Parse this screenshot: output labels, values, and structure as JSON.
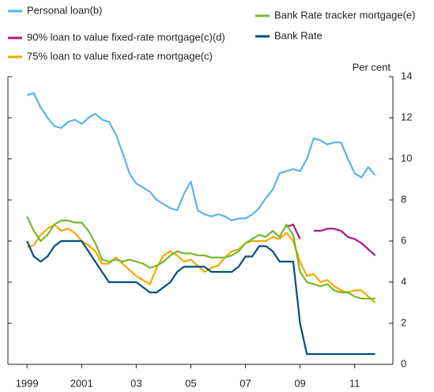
{
  "chart_data": {
    "type": "line",
    "ylabel": "Per cent",
    "x": [
      1999,
      1999.25,
      1999.5,
      1999.75,
      2000,
      2000.25,
      2000.5,
      2000.75,
      2001,
      2001.25,
      2001.5,
      2001.75,
      2002,
      2002.25,
      2002.5,
      2002.75,
      2003,
      2003.25,
      2003.5,
      2003.75,
      2004,
      2004.25,
      2004.5,
      2004.75,
      2005,
      2005.25,
      2005.5,
      2005.75,
      2006,
      2006.25,
      2006.5,
      2006.75,
      2007,
      2007.25,
      2007.5,
      2007.75,
      2008,
      2008.25,
      2008.5,
      2008.75,
      2009,
      2009.25,
      2009.5,
      2009.75,
      2010,
      2010.25,
      2010.5,
      2010.75,
      2011,
      2011.25,
      2011.5,
      2011.75
    ],
    "series": [
      {
        "name": "Personal loan(b)",
        "color": "#5ab4e5",
        "values": [
          13.1,
          13.2,
          12.5,
          12.0,
          11.6,
          11.5,
          11.8,
          11.9,
          11.7,
          12.0,
          12.2,
          11.9,
          11.8,
          11.2,
          10.3,
          9.3,
          8.8,
          8.6,
          8.4,
          8.0,
          7.8,
          7.6,
          7.5,
          8.3,
          8.9,
          7.5,
          7.3,
          7.2,
          7.3,
          7.2,
          7.0,
          7.1,
          7.1,
          7.3,
          7.6,
          8.1,
          8.5,
          9.3,
          9.4,
          9.5,
          9.4,
          10.0,
          11.0,
          10.9,
          10.7,
          10.8,
          10.8,
          10.0,
          9.3,
          9.1,
          9.6,
          9.2
        ]
      },
      {
        "name": "90% loan to value fixed-rate mortgage(c)(d)",
        "color": "#b0177a",
        "values": [
          null,
          null,
          null,
          null,
          null,
          null,
          null,
          null,
          null,
          null,
          null,
          null,
          null,
          null,
          null,
          null,
          null,
          null,
          null,
          null,
          null,
          null,
          null,
          null,
          null,
          null,
          null,
          null,
          null,
          null,
          null,
          null,
          null,
          null,
          null,
          null,
          null,
          null,
          6.7,
          6.8,
          6.1,
          null,
          6.5,
          6.5,
          6.6,
          6.6,
          6.5,
          6.2,
          6.1,
          5.9,
          5.6,
          5.3
        ]
      },
      {
        "name": "75% loan to value fixed-rate mortgage(c)",
        "color": "#f5a800",
        "values": [
          5.7,
          5.8,
          6.3,
          6.6,
          6.8,
          6.5,
          6.6,
          6.4,
          6.0,
          5.8,
          5.5,
          4.9,
          4.9,
          5.2,
          4.9,
          4.6,
          4.3,
          4.1,
          3.9,
          4.7,
          5.3,
          5.5,
          5.3,
          5.0,
          5.1,
          4.8,
          4.5,
          4.7,
          4.8,
          5.2,
          5.5,
          5.6,
          5.9,
          6.0,
          6.0,
          6.0,
          6.2,
          6.1,
          6.4,
          6.0,
          5.0,
          4.3,
          4.4,
          4.0,
          4.1,
          3.8,
          3.6,
          3.5,
          3.6,
          3.6,
          3.3,
          3.0
        ]
      },
      {
        "name": "Bank Rate tracker mortgage(e)",
        "color": "#76b82a",
        "values": [
          7.2,
          6.5,
          6.0,
          6.3,
          6.8,
          7.0,
          7.0,
          6.9,
          6.9,
          6.5,
          5.9,
          5.1,
          5.0,
          5.1,
          5.0,
          5.1,
          5.0,
          4.9,
          4.7,
          4.8,
          5.0,
          5.3,
          5.5,
          5.4,
          5.4,
          5.3,
          5.3,
          5.2,
          5.2,
          5.2,
          5.3,
          5.5,
          5.9,
          6.1,
          6.3,
          6.2,
          6.5,
          6.2,
          6.8,
          6.3,
          4.5,
          4.0,
          3.9,
          3.8,
          3.9,
          3.6,
          3.5,
          3.5,
          3.3,
          3.2,
          3.2,
          3.2
        ]
      },
      {
        "name": "Bank Rate",
        "color": "#00507d",
        "values": [
          6.0,
          5.25,
          5.0,
          5.25,
          5.75,
          6.0,
          6.0,
          6.0,
          6.0,
          5.5,
          5.0,
          4.5,
          4.0,
          4.0,
          4.0,
          4.0,
          4.0,
          3.75,
          3.5,
          3.5,
          3.75,
          4.0,
          4.5,
          4.75,
          4.75,
          4.75,
          4.75,
          4.5,
          4.5,
          4.5,
          4.5,
          4.75,
          5.25,
          5.25,
          5.75,
          5.75,
          5.5,
          5.0,
          5.0,
          5.0,
          2.0,
          0.5,
          0.5,
          0.5,
          0.5,
          0.5,
          0.5,
          0.5,
          0.5,
          0.5,
          0.5,
          0.5
        ]
      }
    ],
    "xlim": [
      1998.3,
      2012.4
    ],
    "xticks": [
      1999,
      2001,
      {
        "value": 2003,
        "label": "03"
      },
      {
        "value": 2005,
        "label": "05"
      },
      {
        "value": 2007,
        "label": "07"
      },
      {
        "value": 2009,
        "label": "09"
      },
      {
        "value": 2011,
        "label": "11"
      }
    ],
    "ylim": [
      0,
      14
    ],
    "yticks": [
      0,
      2,
      4,
      6,
      8,
      10,
      12,
      14
    ]
  }
}
